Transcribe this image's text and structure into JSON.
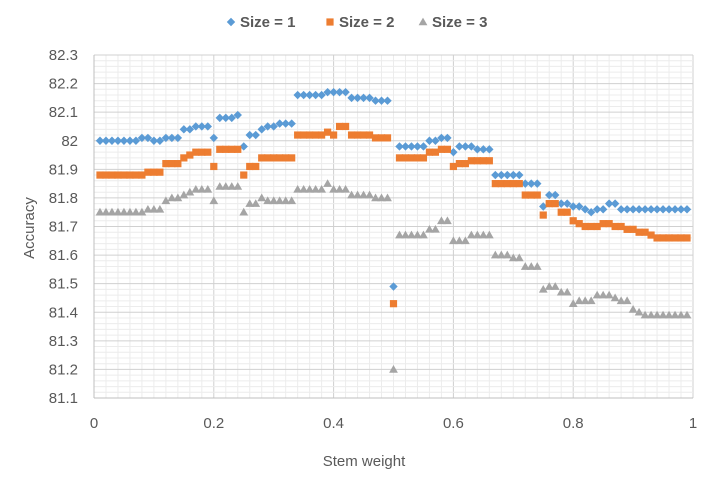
{
  "chart_data": {
    "type": "scatter",
    "title": "",
    "xlabel": "Stem weight",
    "ylabel": "Accuracy",
    "xlim": [
      0,
      1
    ],
    "ylim": [
      81.1,
      82.3
    ],
    "x_ticks": [
      "0",
      "0.2",
      "0.4",
      "0.6",
      "0.8",
      "1"
    ],
    "y_ticks": [
      "81.1",
      "81.2",
      "81.3",
      "81.4",
      "81.5",
      "81.6",
      "81.7",
      "81.8",
      "81.9",
      "82",
      "82.1",
      "82.2",
      "82.3"
    ],
    "grid": true,
    "legend_position": "top",
    "series": [
      {
        "name": "Size = 1",
        "marker": "diamond",
        "color": "#5B9BD5",
        "x": [
          0.01,
          0.02,
          0.03,
          0.04,
          0.05,
          0.06,
          0.07,
          0.08,
          0.09,
          0.1,
          0.11,
          0.12,
          0.13,
          0.14,
          0.15,
          0.16,
          0.17,
          0.18,
          0.19,
          0.2,
          0.21,
          0.22,
          0.23,
          0.24,
          0.25,
          0.26,
          0.27,
          0.28,
          0.29,
          0.3,
          0.31,
          0.32,
          0.33,
          0.34,
          0.35,
          0.36,
          0.37,
          0.38,
          0.39,
          0.4,
          0.41,
          0.42,
          0.43,
          0.44,
          0.45,
          0.46,
          0.47,
          0.48,
          0.49,
          0.5,
          0.51,
          0.52,
          0.53,
          0.54,
          0.55,
          0.56,
          0.57,
          0.58,
          0.59,
          0.6,
          0.61,
          0.62,
          0.63,
          0.64,
          0.65,
          0.66,
          0.67,
          0.68,
          0.69,
          0.7,
          0.71,
          0.72,
          0.73,
          0.74,
          0.75,
          0.76,
          0.77,
          0.78,
          0.79,
          0.8,
          0.81,
          0.82,
          0.83,
          0.84,
          0.85,
          0.86,
          0.87,
          0.88,
          0.89,
          0.9,
          0.91,
          0.92,
          0.93,
          0.94,
          0.95,
          0.96,
          0.97,
          0.98,
          0.99
        ],
        "y": [
          82.0,
          82.0,
          82.0,
          82.0,
          82.0,
          82.0,
          82.0,
          82.01,
          82.01,
          82.0,
          82.0,
          82.01,
          82.01,
          82.01,
          82.04,
          82.04,
          82.05,
          82.05,
          82.05,
          82.01,
          82.08,
          82.08,
          82.08,
          82.09,
          81.98,
          82.02,
          82.02,
          82.04,
          82.05,
          82.05,
          82.06,
          82.06,
          82.06,
          82.16,
          82.16,
          82.16,
          82.16,
          82.16,
          82.17,
          82.17,
          82.17,
          82.17,
          82.15,
          82.15,
          82.15,
          82.15,
          82.14,
          82.14,
          82.14,
          81.49,
          81.98,
          81.98,
          81.98,
          81.98,
          81.98,
          82.0,
          82.0,
          82.01,
          82.01,
          81.96,
          81.98,
          81.98,
          81.98,
          81.97,
          81.97,
          81.97,
          81.88,
          81.88,
          81.88,
          81.88,
          81.88,
          81.85,
          81.85,
          81.85,
          81.77,
          81.81,
          81.81,
          81.78,
          81.78,
          81.77,
          81.77,
          81.76,
          81.75,
          81.76,
          81.76,
          81.78,
          81.78,
          81.76,
          81.76,
          81.76,
          81.76,
          81.76,
          81.76,
          81.76,
          81.76,
          81.76,
          81.76,
          81.76,
          81.76
        ]
      },
      {
        "name": "Size = 2",
        "marker": "square",
        "color": "#ED7D31",
        "x": [
          0.01,
          0.02,
          0.03,
          0.04,
          0.05,
          0.06,
          0.07,
          0.08,
          0.09,
          0.1,
          0.11,
          0.12,
          0.13,
          0.14,
          0.15,
          0.16,
          0.17,
          0.18,
          0.19,
          0.2,
          0.21,
          0.22,
          0.23,
          0.24,
          0.25,
          0.26,
          0.27,
          0.28,
          0.29,
          0.3,
          0.31,
          0.32,
          0.33,
          0.34,
          0.35,
          0.36,
          0.37,
          0.38,
          0.39,
          0.4,
          0.41,
          0.42,
          0.43,
          0.44,
          0.45,
          0.46,
          0.47,
          0.48,
          0.49,
          0.5,
          0.51,
          0.52,
          0.53,
          0.54,
          0.55,
          0.56,
          0.57,
          0.58,
          0.59,
          0.6,
          0.61,
          0.62,
          0.63,
          0.64,
          0.65,
          0.66,
          0.67,
          0.68,
          0.69,
          0.7,
          0.71,
          0.72,
          0.73,
          0.74,
          0.75,
          0.76,
          0.77,
          0.78,
          0.79,
          0.8,
          0.81,
          0.82,
          0.83,
          0.84,
          0.85,
          0.86,
          0.87,
          0.88,
          0.89,
          0.9,
          0.91,
          0.92,
          0.93,
          0.94,
          0.95,
          0.96,
          0.97,
          0.98,
          0.99
        ],
        "y": [
          81.88,
          81.88,
          81.88,
          81.88,
          81.88,
          81.88,
          81.88,
          81.88,
          81.89,
          81.89,
          81.89,
          81.92,
          81.92,
          81.92,
          81.94,
          81.95,
          81.96,
          81.96,
          81.96,
          81.91,
          81.97,
          81.97,
          81.97,
          81.97,
          81.88,
          81.91,
          81.91,
          81.94,
          81.94,
          81.94,
          81.94,
          81.94,
          81.94,
          82.02,
          82.02,
          82.02,
          82.02,
          82.02,
          82.03,
          82.02,
          82.05,
          82.05,
          82.02,
          82.02,
          82.02,
          82.02,
          82.01,
          82.01,
          82.01,
          81.43,
          81.94,
          81.94,
          81.94,
          81.94,
          81.94,
          81.96,
          81.96,
          81.97,
          81.97,
          81.91,
          81.92,
          81.92,
          81.93,
          81.93,
          81.93,
          81.93,
          81.85,
          81.85,
          81.85,
          81.85,
          81.85,
          81.81,
          81.81,
          81.81,
          81.74,
          81.78,
          81.78,
          81.75,
          81.75,
          81.72,
          81.71,
          81.7,
          81.7,
          81.7,
          81.71,
          81.71,
          81.7,
          81.7,
          81.69,
          81.69,
          81.68,
          81.68,
          81.67,
          81.66,
          81.66,
          81.66,
          81.66,
          81.66,
          81.66
        ]
      },
      {
        "name": "Size = 3",
        "marker": "triangle",
        "color": "#A5A5A5",
        "x": [
          0.01,
          0.02,
          0.03,
          0.04,
          0.05,
          0.06,
          0.07,
          0.08,
          0.09,
          0.1,
          0.11,
          0.12,
          0.13,
          0.14,
          0.15,
          0.16,
          0.17,
          0.18,
          0.19,
          0.2,
          0.21,
          0.22,
          0.23,
          0.24,
          0.25,
          0.26,
          0.27,
          0.28,
          0.29,
          0.3,
          0.31,
          0.32,
          0.33,
          0.34,
          0.35,
          0.36,
          0.37,
          0.38,
          0.39,
          0.4,
          0.41,
          0.42,
          0.43,
          0.44,
          0.45,
          0.46,
          0.47,
          0.48,
          0.49,
          0.5,
          0.51,
          0.52,
          0.53,
          0.54,
          0.55,
          0.56,
          0.57,
          0.58,
          0.59,
          0.6,
          0.61,
          0.62,
          0.63,
          0.64,
          0.65,
          0.66,
          0.67,
          0.68,
          0.69,
          0.7,
          0.71,
          0.72,
          0.73,
          0.74,
          0.75,
          0.76,
          0.77,
          0.78,
          0.79,
          0.8,
          0.81,
          0.82,
          0.83,
          0.84,
          0.85,
          0.86,
          0.87,
          0.88,
          0.89,
          0.9,
          0.91,
          0.92,
          0.93,
          0.94,
          0.95,
          0.96,
          0.97,
          0.98,
          0.99
        ],
        "y": [
          81.75,
          81.75,
          81.75,
          81.75,
          81.75,
          81.75,
          81.75,
          81.75,
          81.76,
          81.76,
          81.76,
          81.79,
          81.8,
          81.8,
          81.81,
          81.82,
          81.83,
          81.83,
          81.83,
          81.79,
          81.84,
          81.84,
          81.84,
          81.84,
          81.75,
          81.78,
          81.78,
          81.8,
          81.79,
          81.79,
          81.79,
          81.79,
          81.79,
          81.83,
          81.83,
          81.83,
          81.83,
          81.83,
          81.85,
          81.83,
          81.83,
          81.83,
          81.81,
          81.81,
          81.81,
          81.81,
          81.8,
          81.8,
          81.8,
          81.2,
          81.67,
          81.67,
          81.67,
          81.67,
          81.67,
          81.69,
          81.69,
          81.72,
          81.72,
          81.65,
          81.65,
          81.65,
          81.67,
          81.67,
          81.67,
          81.67,
          81.6,
          81.6,
          81.6,
          81.59,
          81.59,
          81.56,
          81.56,
          81.56,
          81.48,
          81.49,
          81.49,
          81.47,
          81.47,
          81.43,
          81.44,
          81.44,
          81.44,
          81.46,
          81.46,
          81.46,
          81.45,
          81.44,
          81.44,
          81.41,
          81.4,
          81.39,
          81.39,
          81.39,
          81.39,
          81.39,
          81.39,
          81.39,
          81.39
        ]
      }
    ]
  }
}
